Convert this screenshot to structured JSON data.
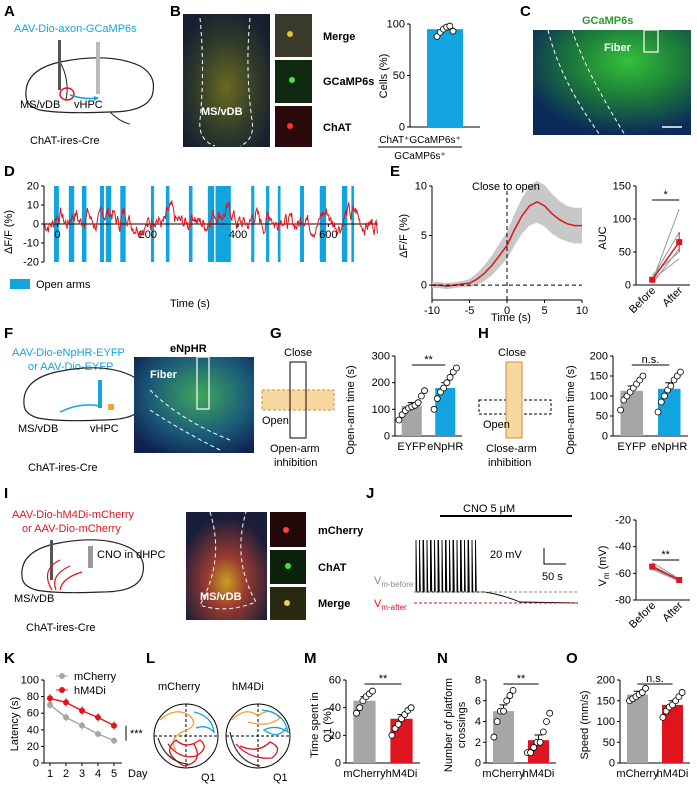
{
  "panels": [
    "A",
    "B",
    "C",
    "D",
    "E",
    "F",
    "G",
    "H",
    "I",
    "J",
    "K",
    "L",
    "M",
    "N",
    "O"
  ],
  "colors": {
    "cyan": "#12a4df",
    "red": "#e0141e",
    "gray": "#a6a6a6",
    "orange": "#f0a636",
    "dark": "#000000"
  },
  "panelA": {
    "virus": "AAV-Dio-axon-GCaMP6s",
    "region1": "MS/vDB",
    "region2": "vHPC",
    "mouse": "ChAT-ires-Cre"
  },
  "panelB": {
    "region": "MS/vDB",
    "merge": "Merge",
    "gcamp": "GCaMP6s",
    "chat": "ChAT",
    "ylabel": "Cells (%)",
    "numerator": "ChAT⁺GCaMP6s⁺",
    "denominator": "GCaMP6s⁺"
  },
  "panelC": {
    "title": "GCaMP6s",
    "fiber": "Fiber"
  },
  "panelD": {
    "legend": "Open arms",
    "ylabel": "ΔF/F (%)",
    "xlabel": "Time (s)"
  },
  "panelE": {
    "annotation": "Close to open",
    "ylabel": "ΔF/F (%)",
    "xlabel": "Time (s)",
    "auc_label": "AUC",
    "sig": "*",
    "before": "Before",
    "after": "After"
  },
  "panelF": {
    "virus1": "AAV-Dio-eNpHR-EYFP",
    "virus2": "or AAV-Dio-EYFP",
    "region1": "MS/vDB",
    "region2": "vHPC",
    "mouse": "ChAT-ires-Cre",
    "image_label": "eNpHR",
    "fiber": "Fiber"
  },
  "panelG": {
    "close": "Close",
    "open": "Open",
    "cond1": "Open-arm",
    "cond2": "inhibition",
    "ylabel": "Open-arm time (s)",
    "sig": "**",
    "cat1": "EYFP",
    "cat2": "eNpHR"
  },
  "panelH": {
    "close": "Close",
    "open": "Open",
    "cond1": "Close-arm",
    "cond2": "inhibition",
    "ylabel": "Open-arm time (s)",
    "sig": "n.s.",
    "cat1": "EYFP",
    "cat2": "eNpHR"
  },
  "panelI": {
    "virus1": "AAV-Dio-hM4Di-mCherry",
    "virus2": "or AAV-Dio-mCherry",
    "cno": "CNO in dHPC",
    "region1": "MS/vDB",
    "mouse": "ChAT-ires-Cre",
    "region_img": "MS/vDB",
    "mcherry": "mCherry",
    "chat": "ChAT",
    "merge": "Merge"
  },
  "panelJ": {
    "cno": "CNO 5 μM",
    "scale_v": "20 mV",
    "scale_t": "50 s",
    "vm_before": "V",
    "vm_before_sub": "m-before",
    "vm_after": "V",
    "vm_after_sub": "m-after",
    "ylabel": "V",
    "ylabel_sub": "m",
    "ylabel_unit": " (mV)",
    "sig": "**",
    "before": "Before",
    "after": "After"
  },
  "panelK": {
    "ylabel": "Latency (s)",
    "xunit": "Day",
    "sig": "***",
    "legend": [
      "mCherry",
      "hM4Di"
    ]
  },
  "panelL": {
    "label1": "mCherry",
    "label2": "hM4Di",
    "quad": "Q1"
  },
  "panelM": {
    "ylabel1": "Time spent in",
    "ylabel2": "Q1 (%)",
    "sig": "**",
    "cat1": "mCherry",
    "cat2": "hM4Di"
  },
  "panelN": {
    "ylabel1": "Number of platform",
    "ylabel2": "crossings",
    "sig": "**",
    "cat1": "mCherry",
    "cat2": "hM4Di"
  },
  "panelO": {
    "ylabel": "Speed (mm/s)",
    "sig": "n.s.",
    "cat1": "mCherry",
    "cat2": "hM4Di"
  },
  "chart_data": [
    {
      "id": "B",
      "type": "bar",
      "categories": [
        "ChAT⁺GCaMP6s⁺/GCaMP6s⁺"
      ],
      "values": [
        95
      ],
      "points": [
        [
          88,
          92,
          95,
          97,
          98,
          93
        ]
      ],
      "ylabel": "Cells (%)",
      "ylim": [
        0,
        100
      ],
      "yticks": [
        0,
        50,
        100
      ]
    },
    {
      "id": "D",
      "type": "line",
      "ylabel": "ΔF/F (%)",
      "xlabel": "Time (s)",
      "xlim": [
        -30,
        710
      ],
      "ylim": [
        -20,
        20
      ],
      "yticks": [
        -20,
        -10,
        0,
        10,
        20
      ],
      "xticks": [
        0,
        200,
        400,
        600
      ],
      "open_arm_intervals": [
        [
          -8,
          3
        ],
        [
          25,
          37
        ],
        [
          54,
          64
        ],
        [
          94,
          103
        ],
        [
          107,
          119
        ],
        [
          139,
          151
        ],
        [
          207,
          214
        ],
        [
          240,
          248
        ],
        [
          291,
          299
        ],
        [
          333,
          347
        ],
        [
          350,
          384
        ],
        [
          429,
          436
        ],
        [
          462,
          469
        ],
        [
          488,
          494
        ],
        [
          537,
          546
        ],
        [
          581,
          595
        ],
        [
          630,
          642
        ],
        [
          651,
          657
        ]
      ]
    },
    {
      "id": "E-left",
      "type": "line",
      "xlabel": "Time (s)",
      "ylabel": "ΔF/F (%)",
      "xlim": [
        -10,
        10
      ],
      "ylim": [
        -1.5,
        10
      ],
      "yticks": [
        0,
        5,
        10
      ],
      "xticks": [
        -10,
        -5,
        0,
        5,
        10
      ],
      "x": [
        -10,
        -9,
        -8,
        -7,
        -6,
        -5,
        -4,
        -3,
        -2,
        -1,
        0,
        1,
        2,
        3,
        4,
        5,
        6,
        7,
        8,
        9,
        10
      ],
      "y": [
        0,
        0,
        -0.1,
        0,
        0.1,
        0.2,
        0.6,
        1.2,
        2.0,
        3.0,
        4.0,
        5.6,
        7.0,
        8.0,
        8.4,
        8.0,
        7.2,
        6.6,
        6.2,
        6.0,
        6.0
      ],
      "sem": [
        0.3,
        0.3,
        0.3,
        0.3,
        0.3,
        0.4,
        0.6,
        0.8,
        1.0,
        1.2,
        1.4,
        1.6,
        1.8,
        2.0,
        2.1,
        2.1,
        2.0,
        1.9,
        1.8,
        1.8,
        1.8
      ]
    },
    {
      "id": "E-right",
      "type": "line",
      "categories": [
        "Before",
        "After"
      ],
      "ylabel": "AUC",
      "ylim": [
        0,
        150
      ],
      "yticks": [
        0,
        50,
        100,
        150
      ],
      "mean": [
        8,
        65
      ],
      "sem": [
        3,
        15
      ],
      "paired": [
        [
          5,
          115
        ],
        [
          10,
          80
        ],
        [
          2,
          55
        ],
        [
          15,
          50
        ],
        [
          8,
          40
        ]
      ]
    },
    {
      "id": "G",
      "type": "bar",
      "categories": [
        "EYFP",
        "eNpHR"
      ],
      "values": [
        113,
        180
      ],
      "sem": [
        12,
        20
      ],
      "ylabel": "Open-arm time (s)",
      "ylim": [
        0,
        300
      ],
      "yticks": [
        0,
        100,
        200,
        300
      ],
      "points": [
        [
          60,
          80,
          95,
          105,
          110,
          115,
          125,
          150,
          170
        ],
        [
          100,
          140,
          165,
          180,
          200,
          220,
          240,
          255
        ]
      ]
    },
    {
      "id": "H",
      "type": "bar",
      "categories": [
        "EYFP",
        "eNpHR"
      ],
      "values": [
        113,
        118
      ],
      "sem": [
        12,
        15
      ],
      "ylabel": "Open-arm time (s)",
      "ylim": [
        0,
        200
      ],
      "yticks": [
        0,
        50,
        100,
        150,
        200
      ],
      "points": [
        [
          65,
          90,
          100,
          110,
          120,
          130,
          140,
          150
        ],
        [
          60,
          85,
          100,
          115,
          125,
          140,
          150,
          160
        ]
      ]
    },
    {
      "id": "J",
      "type": "line",
      "categories": [
        "Before",
        "After"
      ],
      "ylabel": "Vm (mV)",
      "ylim": [
        -80,
        -20
      ],
      "yticks": [
        -80,
        -60,
        -40,
        -20
      ],
      "mean": [
        -55,
        -65
      ],
      "paired": [
        [
          -52,
          -64
        ],
        [
          -54,
          -65
        ],
        [
          -55,
          -65
        ],
        [
          -56,
          -66
        ],
        [
          -57,
          -66
        ],
        [
          -55,
          -64
        ]
      ]
    },
    {
      "id": "K",
      "type": "line",
      "x": [
        1,
        2,
        3,
        4,
        5
      ],
      "xlabel": "Day",
      "ylabel": "Latency (s)",
      "ylim": [
        0,
        100
      ],
      "yticks": [
        0,
        20,
        40,
        60,
        80,
        100
      ],
      "series": [
        {
          "name": "mCherry",
          "values": [
            70,
            55,
            45,
            35,
            27
          ],
          "sem": [
            5,
            5,
            5,
            4,
            4
          ]
        },
        {
          "name": "hM4Di",
          "values": [
            78,
            73,
            63,
            55,
            45
          ],
          "sem": [
            5,
            5,
            5,
            5,
            5
          ]
        }
      ]
    },
    {
      "id": "M",
      "type": "bar",
      "categories": [
        "mCherry",
        "hM4Di"
      ],
      "values": [
        45,
        32
      ],
      "sem": [
        3,
        3
      ],
      "ylabel": "Time spent in Q1 (%)",
      "ylim": [
        0,
        60
      ],
      "yticks": [
        0,
        20,
        40,
        60
      ],
      "points": [
        [
          36,
          40,
          45,
          48,
          50,
          52
        ],
        [
          20,
          25,
          28,
          32,
          35,
          38,
          40
        ]
      ]
    },
    {
      "id": "N",
      "type": "bar",
      "categories": [
        "mCherry",
        "hM4Di"
      ],
      "values": [
        5,
        2.2
      ],
      "sem": [
        0.6,
        0.5
      ],
      "ylabel": "Number of platform crossings",
      "ylim": [
        0,
        8
      ],
      "yticks": [
        0,
        2,
        4,
        6,
        8
      ],
      "points": [
        [
          2.5,
          4,
          5,
          5,
          6,
          6.5,
          7
        ],
        [
          1,
          1,
          1.5,
          2,
          2,
          3,
          4,
          4.8
        ]
      ]
    },
    {
      "id": "O",
      "type": "bar",
      "categories": [
        "mCherry",
        "hM4Di"
      ],
      "values": [
        165,
        140
      ],
      "sem": [
        8,
        10
      ],
      "ylabel": "Speed (mm/s)",
      "ylim": [
        0,
        200
      ],
      "yticks": [
        0,
        50,
        100,
        150,
        200
      ],
      "points": [
        [
          150,
          155,
          160,
          165,
          170,
          180
        ],
        [
          110,
          125,
          135,
          140,
          150,
          160,
          170
        ]
      ]
    }
  ]
}
